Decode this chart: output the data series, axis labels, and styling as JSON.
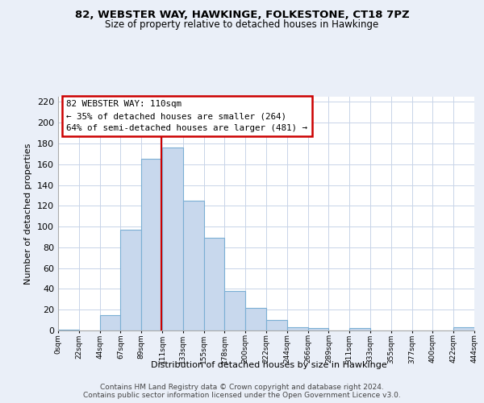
{
  "title1": "82, WEBSTER WAY, HAWKINGE, FOLKESTONE, CT18 7PZ",
  "title2": "Size of property relative to detached houses in Hawkinge",
  "xlabel": "Distribution of detached houses by size in Hawkinge",
  "ylabel": "Number of detached properties",
  "bin_labels": [
    "0sqm",
    "22sqm",
    "44sqm",
    "67sqm",
    "89sqm",
    "111sqm",
    "133sqm",
    "155sqm",
    "178sqm",
    "200sqm",
    "222sqm",
    "244sqm",
    "266sqm",
    "289sqm",
    "311sqm",
    "333sqm",
    "355sqm",
    "377sqm",
    "400sqm",
    "422sqm",
    "444sqm"
  ],
  "bar_heights": [
    1,
    0,
    15,
    97,
    165,
    176,
    125,
    89,
    38,
    22,
    10,
    3,
    2,
    0,
    2,
    0,
    0,
    0,
    0,
    3
  ],
  "bar_color": "#c8d8ed",
  "bar_edge_color": "#7bafd4",
  "subject_line_label": "82 WEBSTER WAY: 110sqm",
  "annotation_line1": "← 35% of detached houses are smaller (264)",
  "annotation_line2": "64% of semi-detached houses are larger (481) →",
  "annotation_box_color": "#ffffff",
  "annotation_box_edge": "#cc0000",
  "subject_line_color": "#cc0000",
  "ylim": [
    0,
    225
  ],
  "yticks": [
    0,
    20,
    40,
    60,
    80,
    100,
    120,
    140,
    160,
    180,
    200,
    220
  ],
  "footer1": "Contains HM Land Registry data © Crown copyright and database right 2024.",
  "footer2": "Contains public sector information licensed under the Open Government Licence v3.0.",
  "bg_color": "#eaeff8",
  "plot_bg_color": "#ffffff",
  "grid_color": "#c8d4e8"
}
